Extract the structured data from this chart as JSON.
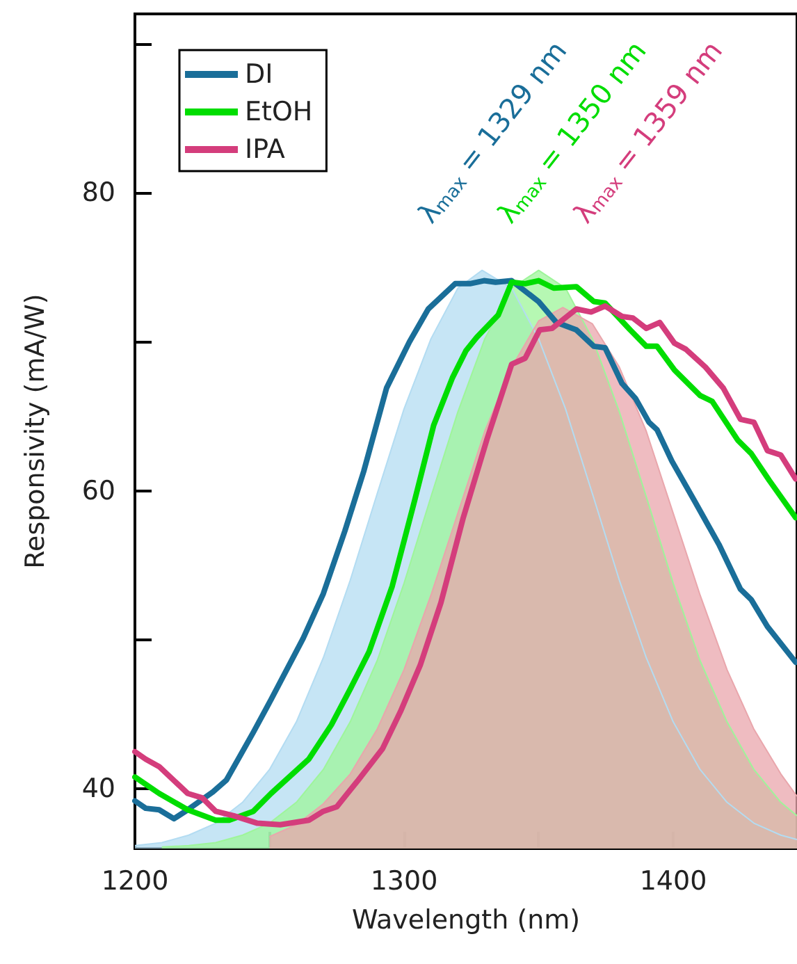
{
  "chart_data": {
    "type": "line",
    "xlabel": "Wavelength (nm)",
    "ylabel": "Responsivity (mA/W)",
    "xlim": [
      1200,
      1446
    ],
    "xticks": [
      1200,
      {
        "value": 1250,
        "label": null
      },
      1300,
      {
        "value": 1350,
        "label": null
      },
      1400
    ],
    "ylim": [
      36,
      92
    ],
    "yticks": [
      40,
      {
        "value": 50,
        "label": null
      },
      60,
      {
        "value": 70,
        "label": null
      },
      80,
      {
        "value": 90,
        "label": null
      }
    ],
    "grid": false,
    "legend": "top left",
    "marker": "none",
    "line_style": "solid",
    "annotations": [
      "λ$_{max}$ = 1329 nm",
      "λ$_{max}$ = 1350 nm",
      "λ$_{max}$ = 1359 nm"
    ],
    "series": [
      {
        "name": "DI",
        "color": "#1a6e99",
        "x": [
          1200,
          1204,
          1209,
          1214.5,
          1219.6,
          1229,
          1234,
          1244,
          1250.6,
          1262.5,
          1270,
          1278,
          1285,
          1293.5,
          1302,
          1309,
          1319,
          1324.5,
          1329.7,
          1334,
          1340,
          1350,
          1356.6,
          1364,
          1370.5,
          1374.7,
          1381,
          1386,
          1391,
          1394,
          1399.5,
          1408,
          1417,
          1425,
          1429,
          1435,
          1445.5
        ],
        "values": [
          39.2,
          38.7,
          38.6,
          38.0,
          38.6,
          39.8,
          40.6,
          43.8,
          46.0,
          50.1,
          53.1,
          57.3,
          61.3,
          66.9,
          70.0,
          72.2,
          73.9,
          73.9,
          74.1,
          74.0,
          74.1,
          72.7,
          71.3,
          70.8,
          69.7,
          69.6,
          67.2,
          66.2,
          64.6,
          64.1,
          62.0,
          59.3,
          56.4,
          53.4,
          52.7,
          50.9,
          48.5
        ]
      },
      {
        "name": "EtOH",
        "color": "#00dd00",
        "x": [
          1200,
          1209,
          1219.6,
          1230,
          1235,
          1244,
          1250.6,
          1264.6,
          1273,
          1280,
          1287,
          1295.6,
          1304,
          1311,
          1318,
          1323,
          1327,
          1335,
          1340,
          1345,
          1350,
          1355.6,
          1364,
          1370.5,
          1374.7,
          1384,
          1390,
          1394,
          1400.5,
          1410,
          1414.5,
          1424,
          1429,
          1435.7,
          1445.5
        ],
        "values": [
          40.8,
          39.7,
          38.6,
          37.9,
          37.9,
          38.5,
          39.7,
          42.0,
          44.3,
          46.7,
          49.2,
          53.6,
          59.4,
          64.4,
          67.6,
          69.4,
          70.3,
          71.8,
          74.0,
          73.9,
          74.1,
          73.6,
          73.7,
          72.7,
          72.6,
          70.8,
          69.7,
          69.7,
          68.1,
          66.4,
          66.0,
          63.4,
          62.5,
          60.7,
          58.2
        ]
      },
      {
        "name": "IPA",
        "color": "#d43d7c",
        "x": [
          1200,
          1204,
          1209,
          1219.6,
          1225,
          1230,
          1236.7,
          1245.5,
          1254,
          1264.6,
          1270,
          1275,
          1283,
          1292,
          1298.7,
          1306,
          1313.7,
          1322,
          1330.7,
          1340,
          1345,
          1350.4,
          1355,
          1364,
          1369.5,
          1374.7,
          1381,
          1385,
          1390,
          1395,
          1400.5,
          1404.7,
          1412,
          1418.6,
          1425,
          1430,
          1435,
          1440,
          1445.5
        ],
        "values": [
          42.5,
          42.0,
          41.5,
          39.7,
          39.4,
          38.5,
          38.2,
          37.7,
          37.6,
          37.9,
          38.5,
          38.8,
          40.6,
          42.7,
          45.2,
          48.3,
          52.5,
          58.2,
          63.4,
          68.5,
          68.9,
          70.8,
          70.9,
          72.2,
          72.0,
          72.4,
          71.7,
          71.6,
          70.9,
          71.3,
          69.9,
          69.5,
          68.3,
          66.9,
          64.8,
          64.6,
          62.7,
          62.4,
          60.8
        ]
      },
      {
        "type": "area",
        "color": "#b3dcf2",
        "x": [
          1200,
          1210,
          1220,
          1230,
          1240,
          1250,
          1260,
          1270,
          1280,
          1290,
          1300,
          1310,
          1320,
          1329,
          1340,
          1350,
          1360,
          1370,
          1380,
          1390,
          1400,
          1410,
          1420,
          1430,
          1440,
          1446
        ],
        "values": [
          36.2,
          36.4,
          36.9,
          37.7,
          39.1,
          41.3,
          44.5,
          48.8,
          54.0,
          59.8,
          65.5,
          70.2,
          73.6,
          74.8,
          73.6,
          70.2,
          65.5,
          59.8,
          54.0,
          48.8,
          44.5,
          41.3,
          39.1,
          37.7,
          36.9,
          36.6
        ]
      },
      {
        "type": "area",
        "color": "#9ef59a",
        "x": [
          1210,
          1220,
          1230,
          1240,
          1250,
          1260,
          1270,
          1280,
          1290,
          1300,
          1310,
          1320,
          1330,
          1340,
          1350,
          1360,
          1370,
          1380,
          1390,
          1400,
          1410,
          1420,
          1430,
          1440,
          1446
        ],
        "values": [
          36.1,
          36.2,
          36.4,
          36.9,
          37.7,
          39.1,
          41.3,
          44.5,
          48.6,
          53.8,
          59.6,
          65.3,
          70.2,
          73.6,
          74.8,
          73.6,
          70.2,
          65.3,
          59.6,
          53.8,
          48.6,
          44.5,
          41.3,
          39.1,
          38.2
        ]
      },
      {
        "type": "area",
        "color": "#e9a6ac",
        "x": [
          1250,
          1260,
          1270,
          1280,
          1290,
          1300,
          1310,
          1320,
          1330,
          1340,
          1350,
          1359,
          1370,
          1380,
          1390,
          1400,
          1410,
          1420,
          1430,
          1440,
          1446
        ],
        "values": [
          36.8,
          37.6,
          39.0,
          41.0,
          44.0,
          48.0,
          53.0,
          58.5,
          64.0,
          68.3,
          71.4,
          72.3,
          71.2,
          68.3,
          64.0,
          58.5,
          53.0,
          48.0,
          44.0,
          41.0,
          39.5
        ]
      }
    ]
  }
}
